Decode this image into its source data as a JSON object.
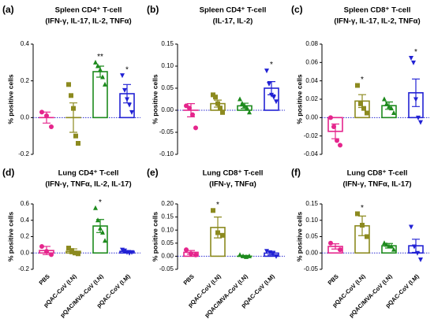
{
  "chart_data": [
    {
      "type": "dot",
      "letter": "(a)",
      "title": "Spleen CD4⁺ T-cell",
      "subtitle": "(IFN-γ, IL-17, IL-2, TNFα)",
      "ylabel": "% positive cells",
      "ylim": [
        -0.2,
        0.4
      ],
      "yticks": [
        -0.2,
        {
          "value": 0,
          "label": "0.0"
        },
        0.2,
        0.4
      ],
      "groups": [
        {
          "color": "#e5258c",
          "marker": "circle",
          "mean": 0.0,
          "sem": 0.03,
          "points": [
            0.03,
            0.01,
            -0.05
          ]
        },
        {
          "color": "#8c8a1f",
          "marker": "square",
          "mean": 0.0,
          "sem": 0.08,
          "points": [
            0.18,
            0.12,
            0.05,
            -0.1,
            -0.14
          ]
        },
        {
          "color": "#1d8a1d",
          "marker": "triangle-up",
          "mean": 0.25,
          "sem": 0.03,
          "points": [
            0.3,
            0.28,
            0.26,
            0.22,
            0.18
          ],
          "annotation": "**"
        },
        {
          "color": "#2222d4",
          "marker": "triangle-down",
          "mean": 0.13,
          "sem": 0.05,
          "points": [
            0.23,
            0.15,
            0.1,
            0.07,
            0.03
          ],
          "annotation": "*"
        }
      ]
    },
    {
      "type": "dot",
      "letter": "(b)",
      "title": "Spleen CD4⁺ T-cell",
      "subtitle": "(IL-17, IL-2)",
      "ylabel": "% positive cells",
      "ylim": [
        -0.1,
        0.15
      ],
      "yticks": [
        {
          "value": -0.1,
          "label": "-0.10"
        },
        {
          "value": -0.05,
          "label": "-0.05"
        },
        {
          "value": 0,
          "label": "0.00"
        },
        {
          "value": 0.05,
          "label": "0.05"
        },
        {
          "value": 0.1,
          "label": "0.10"
        },
        {
          "value": 0.15,
          "label": "0.15"
        }
      ],
      "groups": [
        {
          "color": "#e5258c",
          "marker": "circle",
          "mean": 0.0,
          "sem": 0.015,
          "points": [
            0.01,
            0.005,
            -0.01,
            -0.04
          ]
        },
        {
          "color": "#8c8a1f",
          "marker": "square",
          "mean": 0.015,
          "sem": 0.008,
          "points": [
            0.035,
            0.03,
            0.015,
            0.005,
            -0.005
          ]
        },
        {
          "color": "#1d8a1d",
          "marker": "triangle-up",
          "mean": 0.01,
          "sem": 0.006,
          "points": [
            0.025,
            0.015,
            0.01,
            0.005,
            -0.005
          ]
        },
        {
          "color": "#2222d4",
          "marker": "triangle-down",
          "mean": 0.05,
          "sem": 0.015,
          "points": [
            0.09,
            0.06,
            0.035,
            0.03,
            0.02
          ],
          "annotation": "*"
        }
      ]
    },
    {
      "type": "dot",
      "letter": "(c)",
      "title": "Spleen CD8⁺ T-cell",
      "subtitle": "(IFN-γ, IL-17, IL-2, TNFα)",
      "ylabel": "% positive cells",
      "ylim": [
        -0.04,
        0.08
      ],
      "yticks": [
        -0.04,
        -0.02,
        {
          "value": 0,
          "label": "0.00"
        },
        0.02,
        0.04,
        0.06,
        0.08
      ],
      "groups": [
        {
          "color": "#e5258c",
          "marker": "circle",
          "mean": -0.015,
          "sem": 0.008,
          "points": [
            0.0,
            -0.01,
            -0.025,
            -0.03
          ]
        },
        {
          "color": "#8c8a1f",
          "marker": "square",
          "mean": 0.018,
          "sem": 0.007,
          "points": [
            0.035,
            0.015,
            0.01,
            0.005
          ],
          "annotation": "*"
        },
        {
          "color": "#1d8a1d",
          "marker": "triangle-up",
          "mean": 0.013,
          "sem": 0.004,
          "points": [
            0.02,
            0.015,
            0.012,
            0.01,
            0.005
          ]
        },
        {
          "color": "#2222d4",
          "marker": "triangle-down",
          "mean": 0.027,
          "sem": 0.015,
          "points": [
            0.065,
            0.06,
            0.02,
            0.0,
            -0.005
          ],
          "annotation": "*"
        }
      ]
    },
    {
      "type": "dot",
      "letter": "(d)",
      "title": "Lung CD4⁺ T-cell",
      "subtitle": "(IFN-γ, TNFα, IL-2, IL-17)",
      "ylabel": "% positive cells",
      "ylim": [
        -0.2,
        0.6
      ],
      "yticks": [
        -0.2,
        {
          "value": 0,
          "label": "0.0"
        },
        0.2,
        0.4,
        0.6
      ],
      "categories": [
        "PBS",
        "pQAC-CoV (I.N)",
        "pQAC/MVA-CoV (I.N)",
        "pQAC-CoV (I.M)"
      ],
      "groups": [
        {
          "color": "#e5258c",
          "marker": "circle",
          "mean": 0.03,
          "sem": 0.05,
          "points": [
            0.08,
            0.02,
            -0.02
          ]
        },
        {
          "color": "#8c8a1f",
          "marker": "square",
          "mean": 0.02,
          "sem": 0.03,
          "points": [
            0.06,
            0.03,
            0.0,
            -0.01
          ]
        },
        {
          "color": "#1d8a1d",
          "marker": "triangle-up",
          "mean": 0.33,
          "sem": 0.08,
          "points": [
            0.55,
            0.4,
            0.3,
            0.25,
            0.15
          ],
          "annotation": "*"
        },
        {
          "color": "#2222d4",
          "marker": "triangle-down",
          "mean": 0.02,
          "sem": 0.01,
          "points": [
            0.04,
            0.03,
            0.01,
            0.0,
            0.01
          ]
        }
      ]
    },
    {
      "type": "dot",
      "letter": "(e)",
      "title": "Lung CD8⁺ T-cell",
      "subtitle": "(IFN-γ, TNFα)",
      "ylabel": "% positive cells",
      "ylim": [
        -0.05,
        0.2
      ],
      "yticks": [
        {
          "value": -0.05,
          "label": "-0.05"
        },
        {
          "value": 0,
          "label": "0.00"
        },
        0.05,
        {
          "value": 0.1,
          "label": "0.10"
        },
        0.15,
        {
          "value": 0.2,
          "label": "0.20"
        }
      ],
      "categories": [
        "PBS",
        "pQAC-CoV (I.N)",
        "pQAC/MVA-CoV (I.N)",
        "pQAC-CoV (I.M)"
      ],
      "groups": [
        {
          "color": "#e5258c",
          "marker": "circle",
          "mean": 0.015,
          "sem": 0.007,
          "points": [
            0.025,
            0.01,
            0.005
          ]
        },
        {
          "color": "#8c8a1f",
          "marker": "square",
          "mean": 0.11,
          "sem": 0.04,
          "points": [
            0.175,
            0.09,
            0.08
          ],
          "annotation": "*"
        },
        {
          "color": "#1d8a1d",
          "marker": "triangle-up",
          "mean": 0.0,
          "sem": 0.003,
          "points": [
            0.005,
            0.0,
            -0.003,
            0.0
          ]
        },
        {
          "color": "#2222d4",
          "marker": "triangle-down",
          "mean": 0.012,
          "sem": 0.007,
          "points": [
            0.02,
            0.015,
            0.01,
            0.0
          ]
        }
      ]
    },
    {
      "type": "dot",
      "letter": "(f)",
      "title": "Lung CD8⁺ T-cell",
      "subtitle": "(IFN-γ, TNFα, IL-17)",
      "ylabel": "% positive cells",
      "ylim": [
        -0.05,
        0.15
      ],
      "yticks": [
        {
          "value": -0.05,
          "label": "-0.05"
        },
        {
          "value": 0,
          "label": "0.00"
        },
        0.05,
        {
          "value": 0.1,
          "label": "0.10"
        },
        0.15
      ],
      "categories": [
        "PBS",
        "pQAC-CoV (I.N)",
        "pQAC/MVA-CoV (I.N)",
        "pQAC-CoV (I.M)"
      ],
      "groups": [
        {
          "color": "#e5258c",
          "marker": "circle",
          "mean": 0.02,
          "sem": 0.008,
          "points": [
            0.03,
            0.01
          ]
        },
        {
          "color": "#8c8a1f",
          "marker": "square",
          "mean": 0.083,
          "sem": 0.03,
          "points": [
            0.12,
            0.085,
            0.05
          ],
          "annotation": "*"
        },
        {
          "color": "#1d8a1d",
          "marker": "triangle-up",
          "mean": 0.022,
          "sem": 0.007,
          "points": [
            0.03,
            0.025,
            0.02,
            0.02,
            0.01
          ]
        },
        {
          "color": "#2222d4",
          "marker": "triangle-down",
          "mean": 0.022,
          "sem": 0.02,
          "points": [
            0.08,
            0.02,
            0.0,
            -0.02
          ]
        }
      ]
    }
  ]
}
